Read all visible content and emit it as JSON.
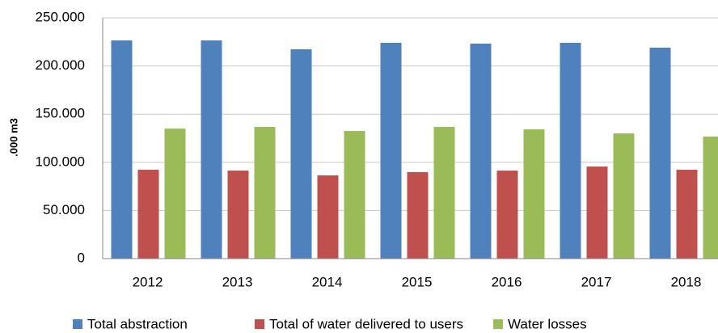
{
  "chart_data": {
    "type": "bar",
    "y_label": ".000 m3",
    "categories": [
      "2012",
      "2013",
      "2014",
      "2015",
      "2016",
      "2017",
      "2018"
    ],
    "series": [
      {
        "name": "Total abstraction",
        "color": "#4f81bd",
        "values": [
          226500,
          226500,
          217300,
          224000,
          223200,
          224000,
          219000
        ]
      },
      {
        "name": "Total of water delivered to users",
        "color": "#c0504d",
        "values": [
          92300,
          91400,
          86400,
          89800,
          91400,
          95600,
          92300
        ]
      },
      {
        "name": "Water losses",
        "color": "#9bbb59",
        "values": [
          135000,
          136700,
          132500,
          136700,
          134200,
          130000,
          126700
        ]
      }
    ],
    "ylim": [
      0,
      250000
    ],
    "yticks": [
      0,
      {
        "value": 50000,
        "label": "50.000"
      },
      {
        "value": 100000,
        "label": "100.000"
      },
      {
        "value": 150000,
        "label": "150.000"
      },
      {
        "value": 200000,
        "label": "200.000"
      },
      {
        "value": 250000,
        "label": "250.000"
      }
    ],
    "grid": true
  }
}
